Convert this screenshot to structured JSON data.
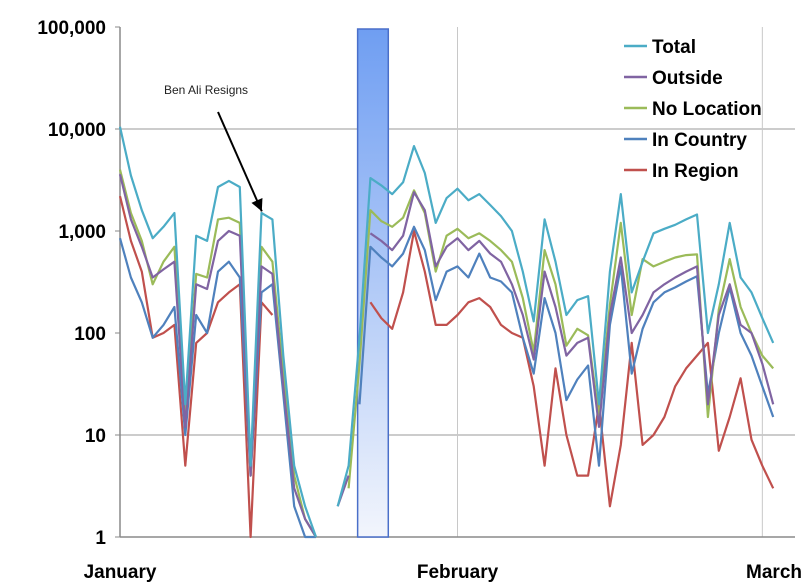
{
  "chart_data": {
    "type": "line",
    "title": "",
    "xlabel": "",
    "ylabel": "",
    "y_scale": "log",
    "ylim": [
      1,
      100000
    ],
    "y_ticks": [
      {
        "value": 1,
        "label": "1"
      },
      {
        "value": 10,
        "label": "10"
      },
      {
        "value": 100,
        "label": "100"
      },
      {
        "value": 1000,
        "label": "1,000"
      },
      {
        "value": 10000,
        "label": "10,000"
      },
      {
        "value": 100000,
        "label": "100,000"
      }
    ],
    "x_ticks": [
      {
        "index": 0,
        "label": "January"
      },
      {
        "index": 31,
        "label": "February"
      },
      {
        "index": 59,
        "label": "March"
      }
    ],
    "xlim": [
      0,
      62
    ],
    "grid": "horizontal at 10 and 10,000; vertical at month starts",
    "legend_position": "top-right",
    "annotation": {
      "text": "Ben Ali Resigns",
      "x": 13.3,
      "y": 1300
    },
    "highlight_band": {
      "x_start": 21,
      "x_end": 24
    },
    "series": [
      {
        "name": "Total",
        "color": "#4bacc6",
        "values": [
          10500,
          3500,
          1600,
          850,
          1100,
          1500,
          20,
          900,
          800,
          2700,
          3100,
          2700,
          5,
          1500,
          1300,
          60,
          5,
          2,
          1,
          null,
          2,
          5,
          90,
          3300,
          2800,
          2300,
          3000,
          6800,
          3700,
          1200,
          2100,
          2600,
          2000,
          2300,
          1800,
          1400,
          1000,
          400,
          130,
          1300,
          500,
          150,
          210,
          230,
          20,
          400,
          2300,
          250,
          500,
          950,
          1050,
          1150,
          1300,
          1450,
          100,
          300,
          1200,
          350,
          250,
          140,
          80
        ]
      },
      {
        "name": "Outside",
        "color": "#8064a2",
        "values": [
          3600,
          1300,
          700,
          350,
          420,
          500,
          12,
          300,
          270,
          800,
          1000,
          900,
          4,
          450,
          380,
          30,
          3,
          1.5,
          1,
          null,
          2,
          4,
          null,
          950,
          800,
          650,
          900,
          2400,
          1600,
          450,
          700,
          850,
          650,
          800,
          600,
          500,
          300,
          150,
          55,
          400,
          180,
          60,
          80,
          90,
          12,
          150,
          550,
          100,
          150,
          250,
          300,
          350,
          400,
          450,
          20,
          150,
          300,
          120,
          100,
          50,
          20
        ]
      },
      {
        "name": "No Location",
        "color": "#9bbb59",
        "values": [
          4000,
          1500,
          800,
          300,
          500,
          700,
          15,
          380,
          350,
          1300,
          1350,
          1200,
          4,
          700,
          500,
          40,
          4,
          1.5,
          1,
          null,
          null,
          3,
          50,
          1600,
          1250,
          1100,
          1350,
          2500,
          1500,
          400,
          900,
          1050,
          850,
          950,
          800,
          650,
          500,
          220,
          65,
          650,
          300,
          75,
          110,
          95,
          15,
          190,
          1200,
          150,
          530,
          450,
          500,
          550,
          580,
          590,
          15,
          170,
          530,
          180,
          100,
          60,
          45
        ]
      },
      {
        "name": "In Country",
        "color": "#4f81bd",
        "values": [
          850,
          350,
          200,
          90,
          120,
          180,
          10,
          150,
          100,
          400,
          500,
          350,
          4,
          250,
          300,
          25,
          2,
          1,
          1,
          null,
          null,
          null,
          20,
          700,
          550,
          450,
          600,
          1100,
          650,
          210,
          400,
          450,
          350,
          600,
          350,
          320,
          250,
          90,
          40,
          220,
          100,
          22,
          35,
          48,
          5,
          120,
          450,
          40,
          110,
          200,
          250,
          280,
          320,
          360,
          25,
          100,
          280,
          100,
          60,
          30,
          15
        ]
      },
      {
        "name": "In Region",
        "color": "#c0504d",
        "values": [
          2200,
          800,
          400,
          90,
          100,
          120,
          5,
          80,
          100,
          200,
          250,
          300,
          1,
          200,
          150,
          null,
          null,
          null,
          null,
          null,
          null,
          null,
          null,
          200,
          140,
          110,
          250,
          1000,
          400,
          120,
          120,
          150,
          200,
          220,
          180,
          120,
          100,
          90,
          30,
          5,
          45,
          10,
          4,
          4,
          20,
          2,
          8,
          80,
          8,
          10,
          15,
          30,
          45,
          60,
          80,
          7,
          15,
          36,
          9,
          5,
          3
        ]
      }
    ]
  }
}
